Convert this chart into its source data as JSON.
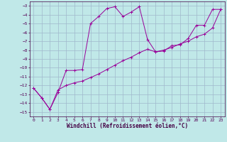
{
  "xlabel": "Windchill (Refroidissement éolien,°C)",
  "background_color": "#c0e8e8",
  "grid_color": "#a0b8cc",
  "line_color": "#990099",
  "xlim": [
    -0.5,
    23.5
  ],
  "ylim": [
    -15.5,
    -2.5
  ],
  "yticks": [
    -15,
    -14,
    -13,
    -12,
    -11,
    -10,
    -9,
    -8,
    -7,
    -6,
    -5,
    -4,
    -3
  ],
  "xticks": [
    0,
    1,
    2,
    3,
    4,
    5,
    6,
    7,
    8,
    9,
    10,
    11,
    12,
    13,
    14,
    15,
    16,
    17,
    18,
    19,
    20,
    21,
    22,
    23
  ],
  "line1_x": [
    0,
    1,
    2,
    3,
    4,
    5,
    6,
    7,
    8,
    9,
    10,
    11,
    12,
    13,
    14,
    15,
    16,
    17,
    18,
    19,
    20,
    21,
    22,
    23
  ],
  "line1_y": [
    -12.3,
    -13.4,
    -14.7,
    -12.8,
    -10.3,
    -10.3,
    -10.2,
    -5.0,
    -4.2,
    -3.3,
    -3.1,
    -4.2,
    -3.7,
    -3.1,
    -6.8,
    -8.2,
    -8.1,
    -7.5,
    -7.4,
    -6.7,
    -5.2,
    -5.2,
    -3.4,
    -3.4
  ],
  "line2_x": [
    0,
    1,
    2,
    3,
    4,
    5,
    6,
    7,
    8,
    9,
    10,
    11,
    12,
    13,
    14,
    15,
    16,
    17,
    18,
    19,
    20,
    21,
    22,
    23
  ],
  "line2_y": [
    -12.3,
    -13.4,
    -14.7,
    -12.5,
    -12.0,
    -11.7,
    -11.5,
    -11.1,
    -10.7,
    -10.2,
    -9.7,
    -9.2,
    -8.8,
    -8.3,
    -7.9,
    -8.2,
    -8.0,
    -7.7,
    -7.3,
    -7.0,
    -6.5,
    -6.2,
    -5.5,
    -3.4
  ]
}
